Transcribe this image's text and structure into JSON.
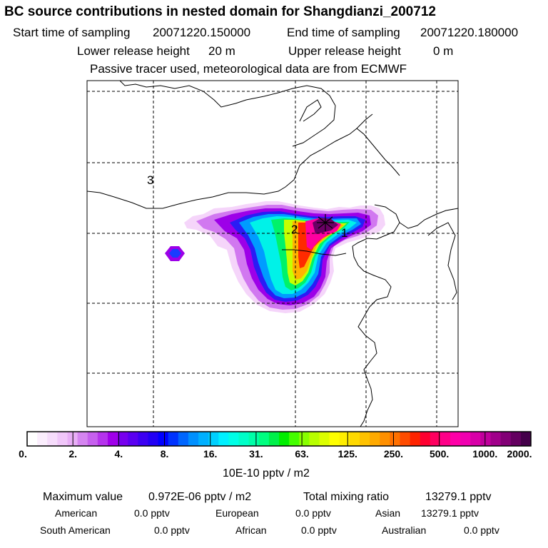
{
  "header": {
    "title": "BC  source contributions in nested domain for Shangdianzi_200712",
    "start_label": "Start time of sampling",
    "start_value": "20071220.150000",
    "end_label": "End time of sampling",
    "end_value": "20071220.180000",
    "lower_label": "Lower release height",
    "lower_value": "20 m",
    "upper_label": "Upper release height",
    "upper_value": "0 m",
    "tracer_note": "Passive tracer used, meteorological data are from ECMWF"
  },
  "map": {
    "markers": [
      {
        "id": "1",
        "label": "1"
      },
      {
        "id": "2",
        "label": "2"
      },
      {
        "id": "3",
        "label": "3"
      }
    ],
    "receptor_symbol": "*"
  },
  "colorbar": {
    "labels": [
      "0.",
      "2.",
      "4.",
      "8.",
      "16.",
      "31.",
      "63.",
      "125.",
      "250.",
      "500.",
      "1000.",
      "2000."
    ],
    "colors": [
      "#ffffff",
      "#fbeefd",
      "#f6dcfb",
      "#f0c6f9",
      "#e8aef6",
      "#d585f0",
      "#c660ee",
      "#b533ec",
      "#a000ea",
      "#7700ee",
      "#5a00f0",
      "#3c00f2",
      "#2200f4",
      "#0000ff",
      "#0033ff",
      "#0066ff",
      "#0090ff",
      "#00b0ff",
      "#00d0ff",
      "#00f0ff",
      "#00ffe6",
      "#00ffc8",
      "#00ffa8",
      "#00ff80",
      "#00f04a",
      "#00ee00",
      "#44ff00",
      "#88ff00",
      "#b8ff00",
      "#dcff00",
      "#ffff00",
      "#ffee00",
      "#ffd900",
      "#ffc200",
      "#ffaa00",
      "#ff9000",
      "#ff7000",
      "#ff4c00",
      "#ff2400",
      "#ff0030",
      "#ff0060",
      "#ff0088",
      "#ff00a8",
      "#f000b0",
      "#d800a8",
      "#c0009c",
      "#a0008a",
      "#820076",
      "#640060",
      "#44004a"
    ],
    "unit": "10E-10 pptv / m2"
  },
  "stats": {
    "max_label": "Maximum value",
    "max_value": "0.972E-06 pptv / m2",
    "total_label": "Total mixing ratio",
    "total_value": "13279.1 pptv",
    "american_label": "American",
    "american_value": "0.0 pptv",
    "european_label": "European",
    "european_value": "0.0 pptv",
    "asian_label": "Asian",
    "asian_value": "13279.1 pptv",
    "southamerican_label": "South American",
    "southamerican_value": "0.0 pptv",
    "african_label": "African",
    "african_value": "0.0 pptv",
    "australian_label": "Australian",
    "australian_value": "0.0 pptv"
  }
}
